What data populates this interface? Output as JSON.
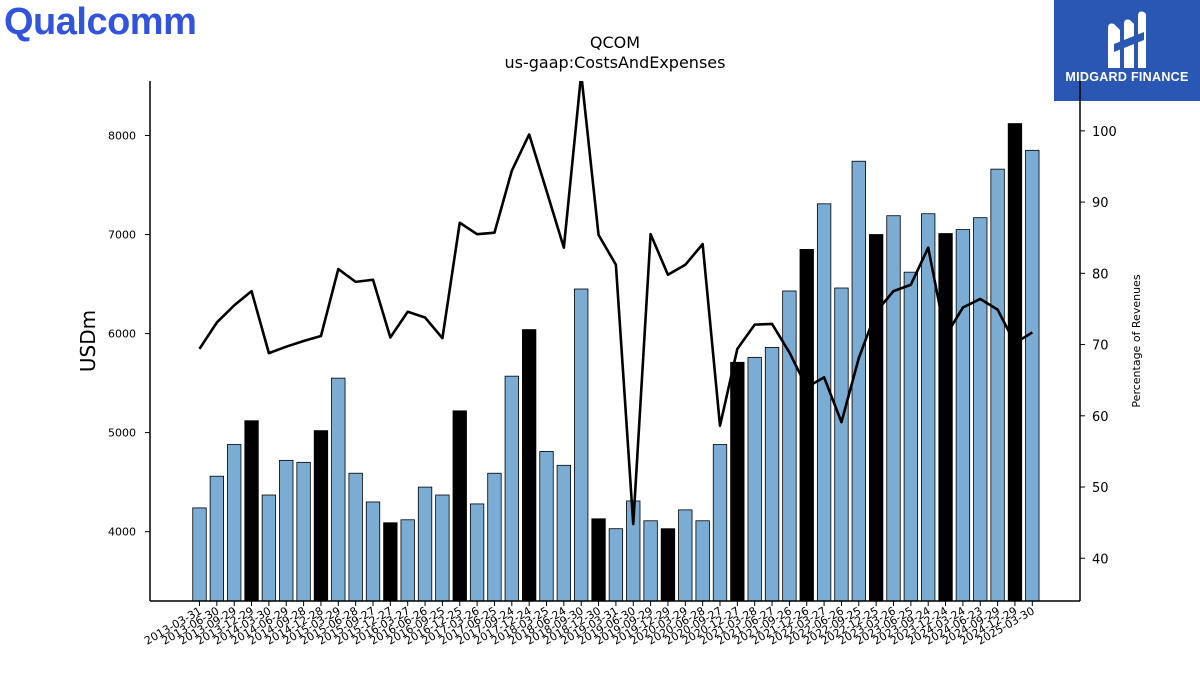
{
  "logos": {
    "left": "Qualcomm",
    "right": "MIDGARD FINANCE"
  },
  "chart_data": {
    "type": "bar",
    "title": "QCOM",
    "subtitle": "us-gaap:CostsAndExpenses",
    "ylabel": "USDm",
    "y2label": "Percentage of Revenues",
    "ylim": [
      3300,
      8550
    ],
    "y2lim": [
      34,
      107
    ],
    "yticks": [
      4000,
      5000,
      6000,
      7000,
      8000
    ],
    "y2ticks": [
      40,
      50,
      60,
      70,
      80,
      90,
      100
    ],
    "bar_color": "#7bacd4",
    "highlight_color": "#000000",
    "line_color": "#000000",
    "categories": [
      "2013-03-31",
      "2013-06-30",
      "2013-09-29",
      "2013-12-29",
      "2014-03-30",
      "2014-06-29",
      "2014-09-28",
      "2014-12-28",
      "2015-03-29",
      "2015-06-28",
      "2015-09-27",
      "2015-12-27",
      "2016-03-27",
      "2016-06-26",
      "2016-09-25",
      "2016-12-25",
      "2017-03-26",
      "2017-06-25",
      "2017-09-24",
      "2017-12-24",
      "2018-03-25",
      "2018-06-24",
      "2018-09-30",
      "2018-12-30",
      "2019-03-31",
      "2019-06-30",
      "2019-09-29",
      "2019-12-29",
      "2020-03-29",
      "2020-06-28",
      "2020-09-27",
      "2020-12-27",
      "2021-03-28",
      "2021-06-27",
      "2021-09-26",
      "2021-12-26",
      "2022-03-27",
      "2022-06-26",
      "2022-09-25",
      "2022-12-25",
      "2023-03-26",
      "2023-06-25",
      "2023-09-24",
      "2023-12-24",
      "2024-03-24",
      "2024-06-23",
      "2024-09-29",
      "2024-12-29",
      "2025-03-30"
    ],
    "series": [
      {
        "name": "",
        "type": "bar",
        "values": [
          4240,
          4560,
          4880,
          5120,
          4370,
          4720,
          4700,
          5020,
          5550,
          4590,
          4300,
          4090,
          4120,
          4450,
          4370,
          5220,
          4280,
          4590,
          5570,
          6040,
          4810,
          4670,
          6450,
          4130,
          4030,
          4310,
          4110,
          4030,
          4220,
          4110,
          4880,
          5710,
          5760,
          5860,
          6430,
          6850,
          7310,
          6460,
          7740,
          7000,
          7190,
          6620,
          7210,
          7010,
          7050,
          7170,
          7660,
          8120,
          7850
        ],
        "highlight": [
          false,
          false,
          false,
          true,
          false,
          false,
          false,
          true,
          false,
          false,
          false,
          true,
          false,
          false,
          false,
          true,
          false,
          false,
          false,
          true,
          false,
          false,
          false,
          true,
          false,
          false,
          false,
          true,
          false,
          false,
          false,
          true,
          false,
          false,
          false,
          true,
          false,
          false,
          false,
          true,
          false,
          false,
          false,
          true,
          false,
          false,
          false,
          true,
          false
        ]
      },
      {
        "name": "",
        "type": "line",
        "axis": "right",
        "values": [
          69.4,
          73.1,
          75.5,
          77.5,
          68.8,
          69.7,
          70.5,
          71.2,
          80.6,
          78.8,
          79.1,
          71.0,
          74.6,
          73.8,
          70.9,
          87.1,
          85.5,
          85.7,
          94.4,
          99.5,
          91.6,
          83.6,
          108.0,
          85.4,
          81.2,
          44.8,
          85.5,
          79.8,
          81.2,
          84.1,
          58.6,
          69.4,
          72.8,
          72.9,
          68.9,
          64.0,
          65.4,
          59.1,
          68.1,
          74.6,
          77.5,
          78.4,
          83.6,
          71.2,
          75.2,
          76.4,
          74.9,
          70.2,
          71.7
        ]
      }
    ]
  }
}
